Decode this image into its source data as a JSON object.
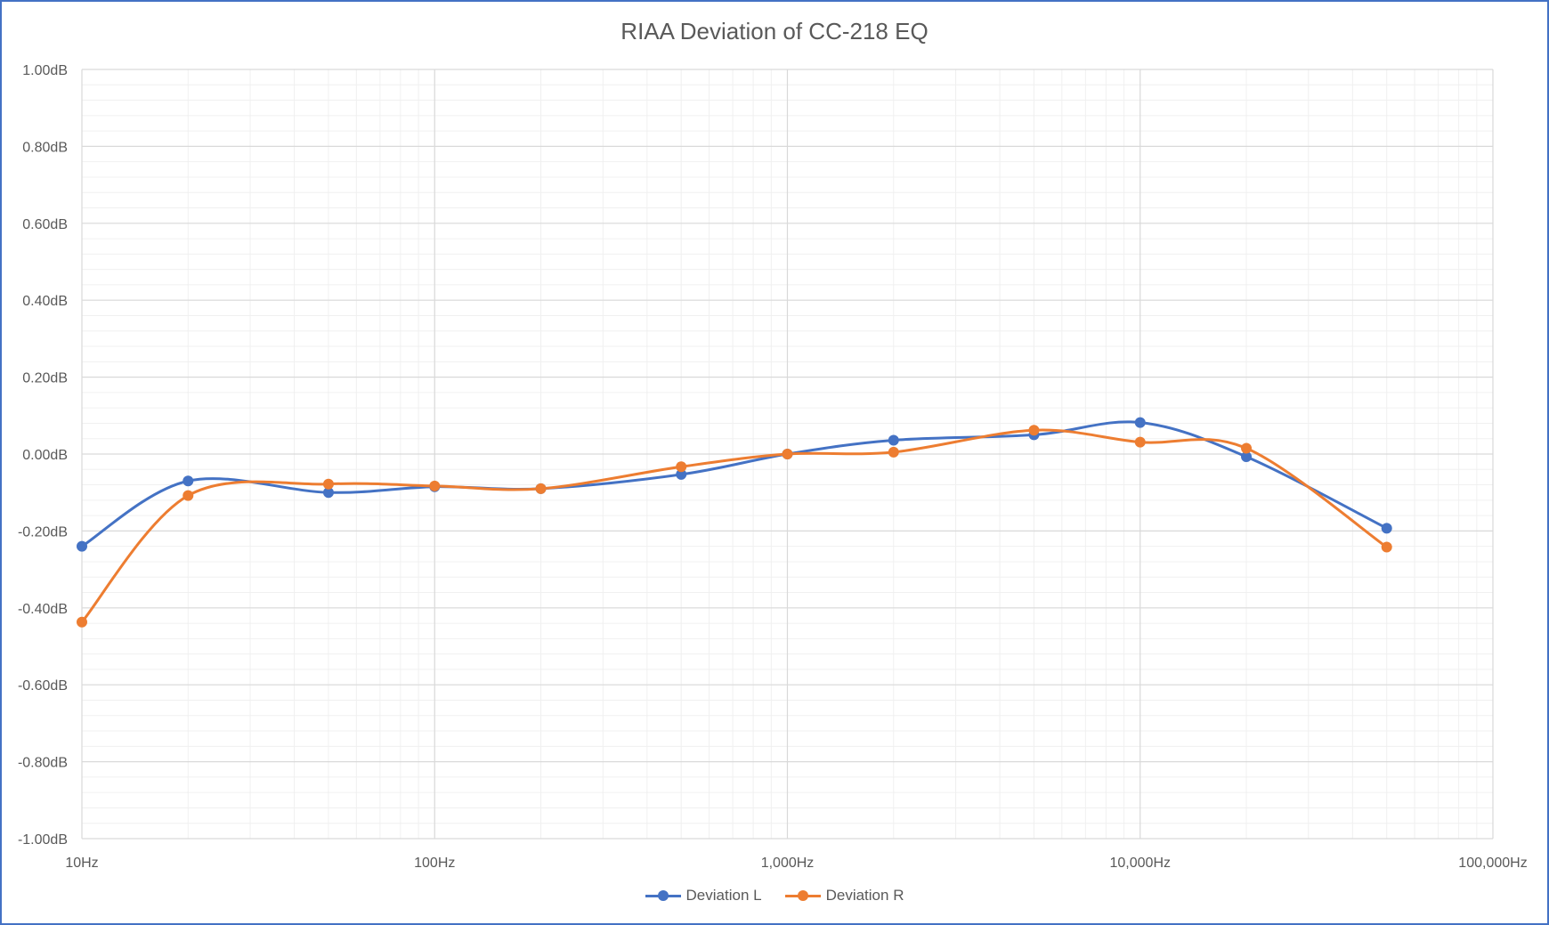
{
  "chart_data": {
    "type": "line",
    "title": "RIAA Deviation of CC-218 EQ",
    "xlabel": "",
    "ylabel": "",
    "x_scale": "log",
    "xlim": [
      10,
      100000
    ],
    "ylim": [
      -1.0,
      1.0
    ],
    "x_ticks": [
      10,
      100,
      1000,
      10000,
      100000
    ],
    "x_tick_labels": [
      "10Hz",
      "100Hz",
      "1,000Hz",
      "10,000Hz",
      "100,000Hz"
    ],
    "y_ticks": [
      -1.0,
      -0.8,
      -0.6,
      -0.4,
      -0.2,
      0.0,
      0.2,
      0.4,
      0.6,
      0.8,
      1.0
    ],
    "y_tick_labels": [
      "-1.00dB",
      "-0.80dB",
      "-0.60dB",
      "-0.40dB",
      "-0.20dB",
      "0.00dB",
      "0.20dB",
      "0.40dB",
      "0.60dB",
      "0.80dB",
      "1.00dB"
    ],
    "grid": true,
    "legend_position": "bottom",
    "x": [
      10,
      20,
      50,
      100,
      200,
      500,
      1000,
      2000,
      5000,
      10000,
      20000,
      50000
    ],
    "series": [
      {
        "name": "Deviation L",
        "color": "#4472c4",
        "values": [
          -0.24,
          -0.07,
          -0.1,
          -0.085,
          -0.09,
          -0.053,
          0.0,
          0.036,
          0.05,
          0.082,
          -0.007,
          -0.193
        ]
      },
      {
        "name": "Deviation R",
        "color": "#ed7d31",
        "values": [
          -0.437,
          -0.108,
          -0.078,
          -0.083,
          -0.09,
          -0.033,
          0.0,
          0.005,
          0.062,
          0.031,
          0.015,
          -0.242
        ]
      }
    ]
  }
}
